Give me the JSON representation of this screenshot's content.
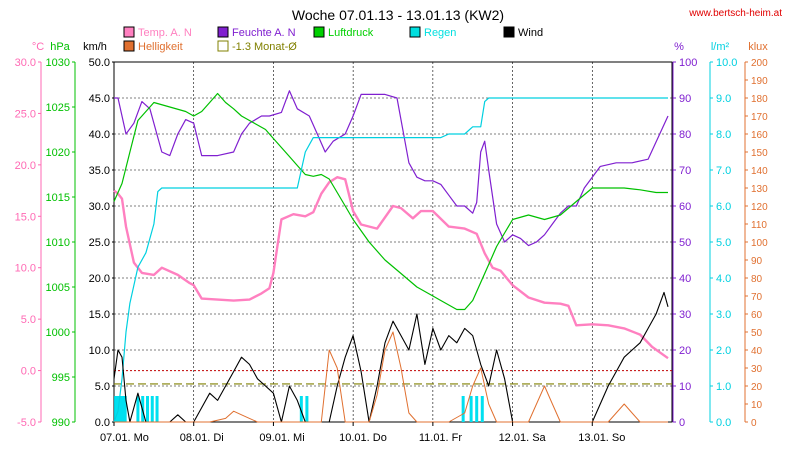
{
  "chart_data": {
    "type": "line",
    "title": "Woche 07.01.13 - 13.01.13 (KW2)",
    "watermark": "www.bertsch-heim.at",
    "days": [
      "07.01. Mo",
      "08.01. Di",
      "09.01. Mi",
      "10.01. Do",
      "11.01. Fr",
      "12.01. Sa",
      "13.01. So"
    ],
    "axes": {
      "temp": {
        "unit": "°C",
        "color": "#ff69b4",
        "range": [
          -5,
          30
        ],
        "ticks": [
          "-5.0",
          "0.0",
          "5.0",
          "10.0",
          "15.0",
          "20.0",
          "25.0",
          "30.0"
        ]
      },
      "pressure": {
        "unit": "hPa",
        "color": "#00c000",
        "range": [
          990,
          1030
        ],
        "ticks": [
          "990",
          "995",
          "1000",
          "1005",
          "1010",
          "1015",
          "1020",
          "1025",
          "1030"
        ]
      },
      "wind": {
        "unit": "km/h",
        "color": "#000000",
        "range": [
          0,
          50
        ],
        "ticks": [
          "0.0",
          "5.0",
          "10.0",
          "15.0",
          "20.0",
          "25.0",
          "30.0",
          "35.0",
          "40.0",
          "45.0",
          "50.0"
        ]
      },
      "humidity": {
        "unit": "%",
        "color": "#8020d0",
        "range": [
          0,
          100
        ],
        "ticks": [
          "0",
          "10",
          "20",
          "30",
          "40",
          "50",
          "60",
          "70",
          "80",
          "90",
          "100"
        ]
      },
      "rain": {
        "unit": "l/m²",
        "color": "#00d0e0",
        "range": [
          0,
          10
        ],
        "ticks": [
          "0.0",
          "1.0",
          "2.0",
          "3.0",
          "4.0",
          "5.0",
          "6.0",
          "7.0",
          "8.0",
          "9.0",
          "10.0"
        ]
      },
      "light": {
        "unit": "klux",
        "color": "#e07030",
        "range": [
          0,
          200
        ],
        "ticks": [
          "0",
          "10",
          "20",
          "30",
          "40",
          "50",
          "60",
          "70",
          "80",
          "90",
          "100",
          "110",
          "120",
          "130",
          "140",
          "150",
          "160",
          "170",
          "180",
          "190",
          "200"
        ]
      }
    },
    "legend": [
      {
        "label": "Temp. A. N",
        "color": "#ff80c0"
      },
      {
        "label": "Feuchte A. N",
        "color": "#8020d0"
      },
      {
        "label": "Luftdruck",
        "color": "#00d000"
      },
      {
        "label": "Regen",
        "color": "#00e0e0"
      },
      {
        "label": "Wind",
        "color": "#000000"
      },
      {
        "label": "Helligkeit",
        "color": "#e07030"
      },
      {
        "label": "-1.3 Monat-Ø",
        "color": "#808000"
      }
    ],
    "monthly_avg_temp": -1.3,
    "freezing_line": 0.0,
    "series": [
      {
        "name": "Temp. A. N",
        "axis": "temp",
        "color": "#ff80c0",
        "x": [
          0,
          0.05,
          0.1,
          0.15,
          0.25,
          0.35,
          0.5,
          0.6,
          0.8,
          0.95,
          1.0,
          1.1,
          1.3,
          1.5,
          1.7,
          1.85,
          1.95,
          2.0,
          2.1,
          2.25,
          2.4,
          2.5,
          2.6,
          2.7,
          2.8,
          2.9,
          3.0,
          3.1,
          3.3,
          3.5,
          3.6,
          3.75,
          3.85,
          4.0,
          4.2,
          4.4,
          4.55,
          4.65,
          4.75,
          4.85,
          5.0,
          5.2,
          5.4,
          5.6,
          5.7,
          5.8,
          6.0,
          6.2,
          6.4,
          6.6,
          6.75,
          6.95
        ],
        "y": [
          17.5,
          17.2,
          16.7,
          14.0,
          10.5,
          9.5,
          9.3,
          10.0,
          9.3,
          8.5,
          8.3,
          7.0,
          6.9,
          6.8,
          6.9,
          7.5,
          8.0,
          9.5,
          14.7,
          15.2,
          15.0,
          15.4,
          17.2,
          18.3,
          18.8,
          18.6,
          15.5,
          14.2,
          13.8,
          16.0,
          15.8,
          14.8,
          15.5,
          15.5,
          14.0,
          13.8,
          13.3,
          11.4,
          10.0,
          9.7,
          8.3,
          7.1,
          6.6,
          6.5,
          6.3,
          4.4,
          4.5,
          4.4,
          4.1,
          3.5,
          2.3,
          1.2
        ]
      },
      {
        "name": "Feuchte A. N",
        "axis": "humidity",
        "color": "#8020d0",
        "x": [
          0,
          0.05,
          0.1,
          0.15,
          0.25,
          0.35,
          0.45,
          0.6,
          0.7,
          0.8,
          0.9,
          1.0,
          1.1,
          1.3,
          1.5,
          1.6,
          1.7,
          1.85,
          1.95,
          2.1,
          2.2,
          2.3,
          2.45,
          2.55,
          2.65,
          2.75,
          2.9,
          3.0,
          3.1,
          3.2,
          3.3,
          3.4,
          3.55,
          3.7,
          3.8,
          3.9,
          4.0,
          4.1,
          4.2,
          4.3,
          4.4,
          4.5,
          4.55,
          4.6,
          4.65,
          4.7,
          4.8,
          4.9,
          5.0,
          5.1,
          5.2,
          5.3,
          5.4,
          5.5,
          5.6,
          5.7,
          5.8,
          5.9,
          6.1,
          6.3,
          6.5,
          6.7,
          6.95
        ],
        "y": [
          90,
          90,
          85,
          80,
          83,
          89,
          87,
          75,
          74,
          80,
          84,
          83,
          74,
          74,
          75,
          80,
          83,
          85,
          85,
          86,
          92,
          87,
          85,
          80,
          75,
          78,
          80,
          85,
          91,
          91,
          91,
          91,
          90,
          72,
          68,
          67,
          67,
          66,
          63,
          60,
          60,
          58,
          61,
          75,
          78,
          70,
          55,
          50,
          52,
          51,
          49,
          50,
          52,
          55,
          58,
          60,
          60,
          65,
          71,
          72,
          72,
          73,
          85
        ]
      },
      {
        "name": "Luftdruck",
        "axis": "pressure",
        "color": "#00c000",
        "x": [
          0,
          0.1,
          0.2,
          0.3,
          0.5,
          0.7,
          0.9,
          1.0,
          1.1,
          1.2,
          1.3,
          1.4,
          1.5,
          1.6,
          1.7,
          1.8,
          1.9,
          2.0,
          2.1,
          2.2,
          2.3,
          2.4,
          2.5,
          2.6,
          2.7,
          2.8,
          2.9,
          3.0,
          3.2,
          3.4,
          3.6,
          3.8,
          3.9,
          4.0,
          4.1,
          4.2,
          4.3,
          4.4,
          4.5,
          4.6,
          4.7,
          4.8,
          4.9,
          5.0,
          5.2,
          5.4,
          5.6,
          5.8,
          6.0,
          6.2,
          6.4,
          6.6,
          6.8,
          6.95
        ],
        "y": [
          1014.5,
          1016.5,
          1020,
          1023.5,
          1025.5,
          1025,
          1024.5,
          1024,
          1024.5,
          1025.5,
          1026.5,
          1025.5,
          1024.8,
          1024,
          1023.5,
          1023,
          1022.5,
          1021.5,
          1020.5,
          1019.5,
          1018.5,
          1017.5,
          1017.3,
          1017.5,
          1017.0,
          1015.5,
          1014.0,
          1012.5,
          1010.0,
          1008.0,
          1006.5,
          1005.0,
          1004.5,
          1004.0,
          1003.5,
          1003.0,
          1002.5,
          1002.5,
          1003.5,
          1005.5,
          1007.5,
          1009.5,
          1011.0,
          1012.5,
          1013.0,
          1012.5,
          1013.0,
          1014.5,
          1016.0,
          1016.0,
          1016.0,
          1015.8,
          1015.5,
          1015.5
        ]
      },
      {
        "name": "Regen",
        "axis": "rain",
        "color": "#00d0e0",
        "x": [
          0,
          0.05,
          0.1,
          0.15,
          0.2,
          0.3,
          0.4,
          0.5,
          0.55,
          0.6,
          1.0,
          1.5,
          2.0,
          2.1,
          2.2,
          2.3,
          2.4,
          2.5,
          3.0,
          3.5,
          4.0,
          4.1,
          4.2,
          4.4,
          4.5,
          4.6,
          4.65,
          4.7,
          5.0,
          5.5,
          6.0,
          6.5,
          6.95
        ],
        "y": [
          0,
          0.3,
          1.2,
          2.5,
          3.3,
          4.3,
          4.7,
          5.5,
          6.4,
          6.5,
          6.5,
          6.5,
          6.5,
          6.5,
          6.5,
          6.5,
          7.5,
          7.9,
          7.9,
          7.9,
          7.9,
          7.9,
          8.0,
          8.0,
          8.2,
          8.2,
          8.9,
          9.0,
          9.0,
          9.0,
          9.0,
          9.0,
          9.0
        ]
      },
      {
        "name": "Wind",
        "axis": "wind",
        "color": "#000000",
        "x": [
          0,
          0.05,
          0.1,
          0.15,
          0.2,
          0.3,
          0.4,
          0.5,
          0.6,
          0.7,
          0.8,
          0.9,
          1.0,
          1.1,
          1.2,
          1.3,
          1.4,
          1.5,
          1.6,
          1.7,
          1.8,
          1.9,
          2.0,
          2.1,
          2.2,
          2.3,
          2.4,
          2.5,
          2.6,
          2.7,
          2.8,
          2.9,
          3.0,
          3.1,
          3.2,
          3.3,
          3.4,
          3.5,
          3.6,
          3.7,
          3.8,
          3.9,
          4.0,
          4.1,
          4.2,
          4.3,
          4.4,
          4.5,
          4.6,
          4.7,
          4.8,
          4.9,
          5.0,
          5.2,
          5.4,
          5.6,
          5.8,
          6.0,
          6.2,
          6.3,
          6.4,
          6.5,
          6.6,
          6.7,
          6.8,
          6.9,
          6.95
        ],
        "y": [
          6,
          10,
          9,
          3,
          0,
          4,
          0,
          0,
          0,
          0,
          1,
          0,
          0,
          2,
          4,
          3,
          5,
          7,
          9,
          8,
          6,
          5,
          4,
          0,
          5,
          3,
          0,
          0,
          0,
          0,
          5,
          9,
          12,
          7,
          0,
          5,
          11,
          14,
          12,
          10,
          15,
          8,
          13,
          10,
          12,
          11,
          13,
          12,
          8,
          5,
          10,
          6,
          0,
          0,
          0,
          0,
          0,
          0,
          5,
          7,
          9,
          10,
          11,
          13,
          15,
          18,
          16
        ]
      },
      {
        "name": "Helligkeit",
        "axis": "light",
        "color": "#e07030",
        "x": [
          0,
          0.5,
          1.0,
          1.2,
          1.4,
          1.5,
          1.6,
          1.7,
          1.8,
          2.0,
          2.2,
          2.4,
          2.6,
          2.7,
          2.8,
          2.9,
          3.0,
          3.2,
          3.3,
          3.4,
          3.5,
          3.6,
          3.7,
          3.8,
          4.0,
          4.2,
          4.4,
          4.5,
          4.6,
          4.7,
          4.8,
          5.0,
          5.2,
          5.3,
          5.4,
          5.5,
          5.6,
          5.8,
          6.0,
          6.2,
          6.3,
          6.4,
          6.5,
          6.6,
          6.95
        ],
        "y": [
          0,
          0,
          0,
          0,
          2,
          6,
          4,
          2,
          0,
          0,
          0,
          0,
          0,
          40,
          30,
          0,
          0,
          0,
          15,
          40,
          50,
          30,
          5,
          0,
          0,
          0,
          5,
          20,
          30,
          10,
          0,
          0,
          0,
          10,
          20,
          10,
          0,
          0,
          0,
          0,
          5,
          10,
          5,
          0,
          0
        ]
      }
    ]
  }
}
